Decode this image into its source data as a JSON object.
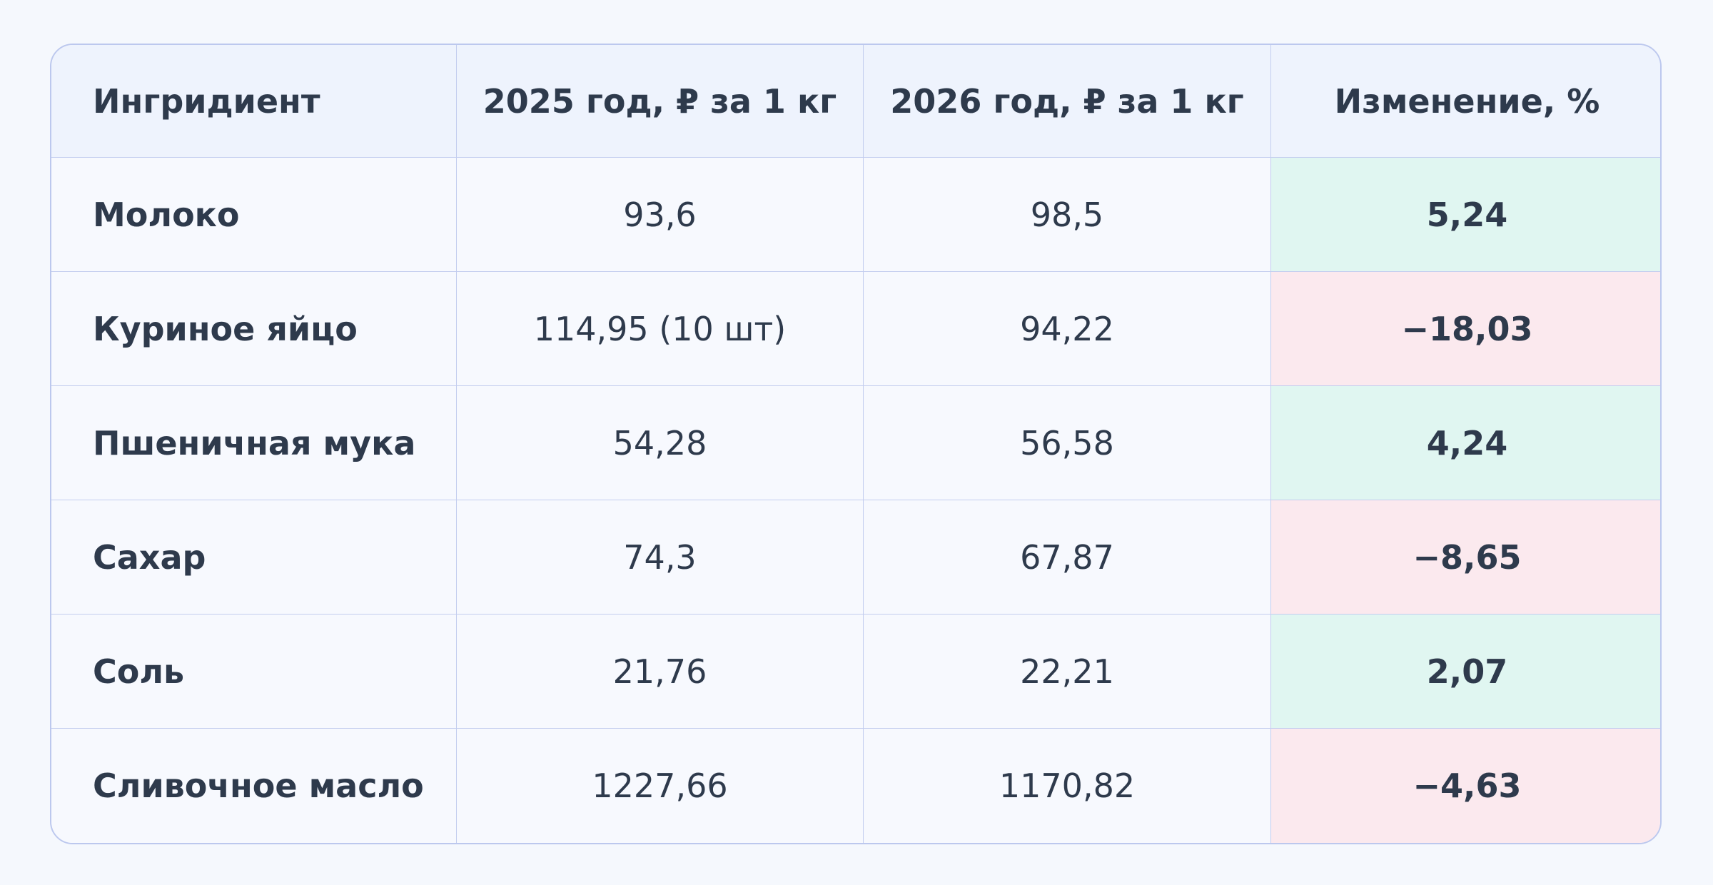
{
  "table": {
    "header": [
      "Ингридиент",
      "2025 год, ₽ за 1 кг",
      "2026 год, ₽ за 1 кг",
      "Изменение, %"
    ],
    "rows": [
      [
        "Молоко",
        "93,6",
        "98,5",
        "5,24"
      ],
      [
        "Куриное яйцо",
        "114,95 (10 шт)",
        "94,22",
        "−18,03"
      ],
      [
        "Пшеничная мука",
        "54,28",
        "56,58",
        "4,24"
      ],
      [
        "Сахар",
        "74,3",
        "67,87",
        "−8,65"
      ],
      [
        "Соль",
        "21,76",
        "22,21",
        "2,07"
      ],
      [
        "Сливочное масло",
        "1227,66",
        "1170,82",
        "−4,63"
      ]
    ]
  }
}
